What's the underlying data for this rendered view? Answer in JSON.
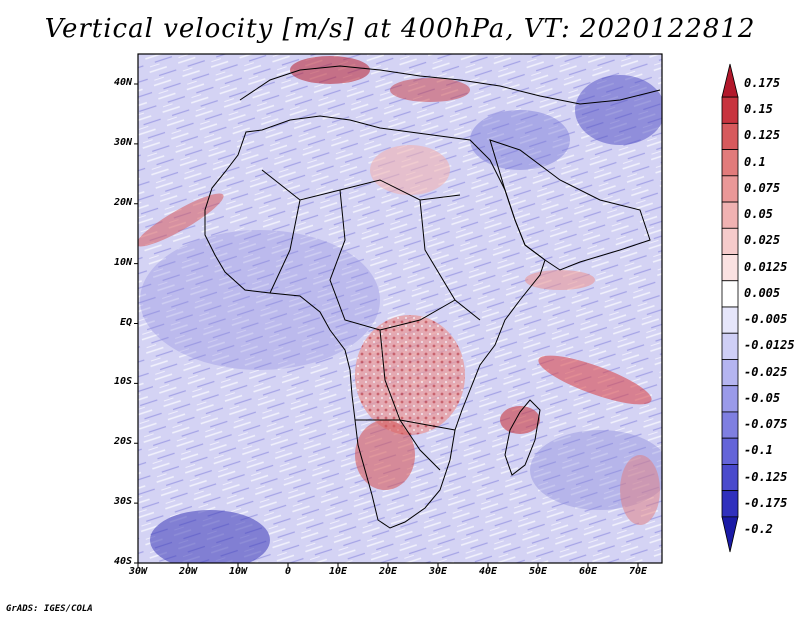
{
  "title": "Vertical velocity [m/s] at 400hPa, VT: 2020122812",
  "credit": "GrADS: IGES/COLA",
  "lat_labels": [
    "40N",
    "30N",
    "20N",
    "10N",
    "EQ",
    "10S",
    "20S",
    "30S",
    "40S"
  ],
  "lon_labels": [
    "30W",
    "20W",
    "10W",
    "0",
    "10E",
    "20E",
    "30E",
    "40E",
    "50E",
    "60E",
    "70E"
  ],
  "colorbar": {
    "labels": [
      "0.175",
      "0.15",
      "0.125",
      "0.1",
      "0.075",
      "0.05",
      "0.025",
      "0.0125",
      "0.005",
      "-0.005",
      "-0.0125",
      "-0.025",
      "-0.05",
      "-0.075",
      "-0.1",
      "-0.125",
      "-0.175",
      "-0.2"
    ],
    "colors": [
      "#b2182b",
      "#c8343f",
      "#d75a5d",
      "#e27b7b",
      "#ea9898",
      "#f0b2b2",
      "#f6cbcb",
      "#fbe2e2",
      "#ffffff",
      "#e6e6fb",
      "#cfcff6",
      "#b5b5f0",
      "#9a9ae9",
      "#7f7fe1",
      "#6464d8",
      "#4a4acc",
      "#3030bd",
      "#1a1aa6"
    ]
  },
  "colors": {
    "frame": "#000000",
    "ocean_base": "#c9c8f2",
    "land_line": "#000000"
  }
}
